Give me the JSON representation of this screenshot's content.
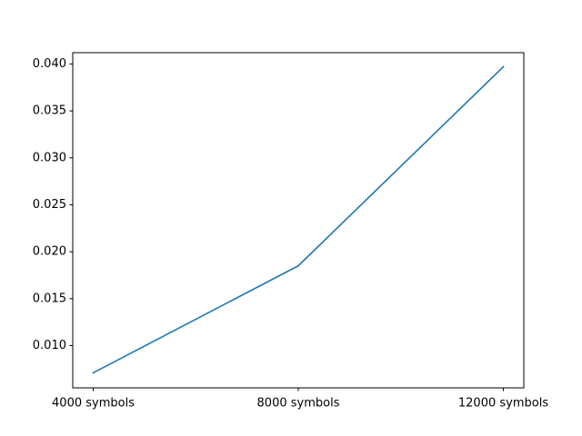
{
  "chart_data": {
    "type": "line",
    "title": "",
    "xlabel": "",
    "ylabel": "",
    "categories": [
      "4000 symbols",
      "8000 symbols",
      "12000 symbols"
    ],
    "series": [
      {
        "values": [
          0.0071,
          0.0185,
          0.0397
        ],
        "color": "#1f77b4"
      }
    ],
    "ylim": [
      0.0055,
      0.0412
    ],
    "yticks": [
      0.01,
      0.015,
      0.02,
      0.025,
      0.03,
      0.035,
      0.04
    ],
    "ytick_labels": [
      "0.010",
      "0.015",
      "0.020",
      "0.025",
      "0.030",
      "0.035",
      "0.040"
    ],
    "grid": false,
    "legend": "none"
  }
}
